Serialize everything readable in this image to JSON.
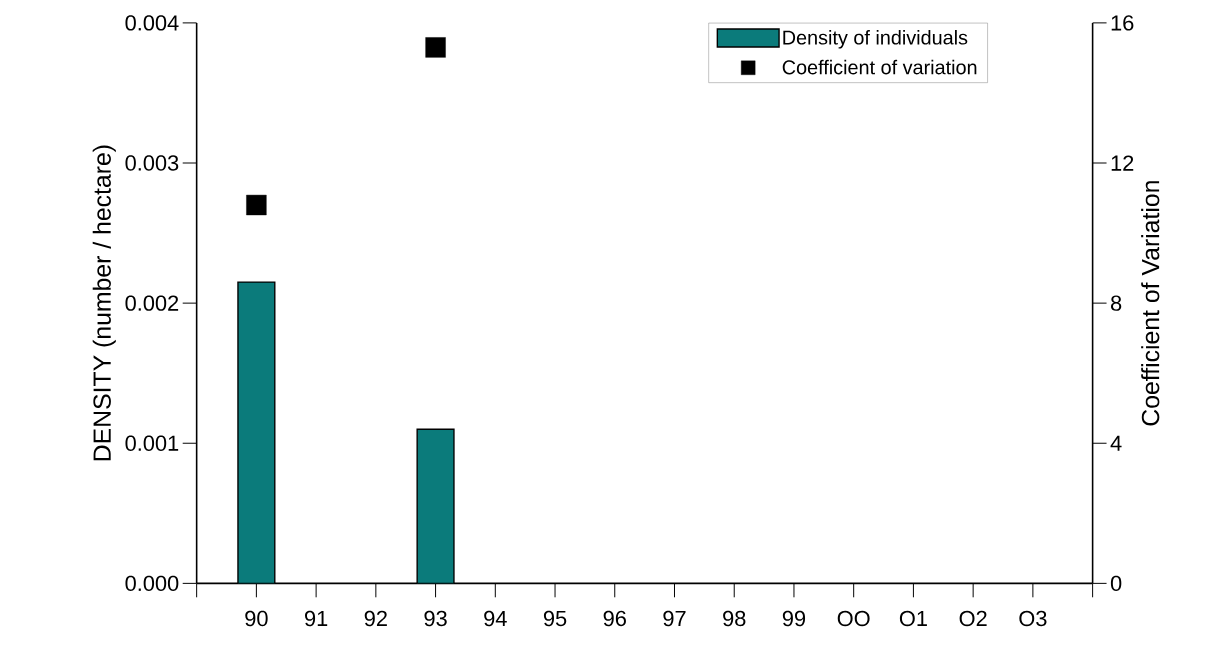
{
  "chart_data": {
    "type": "bar",
    "categories": [
      "90",
      "91",
      "92",
      "93",
      "94",
      "95",
      "96",
      "97",
      "98",
      "99",
      "OO",
      "O1",
      "O2",
      "O3"
    ],
    "ylabel": "DENSITY (number / hectare)",
    "y2label": "Coefficient of Variation",
    "series": [
      {
        "name": "Density of individuals",
        "color": "#0b7b7b",
        "values": [
          0.00215,
          null,
          null,
          0.0011,
          null,
          null,
          null,
          null,
          null,
          null,
          null,
          null,
          null,
          null
        ]
      },
      {
        "name": "Coefficient of variation",
        "type": "scatter",
        "axis": "y2",
        "color": "#000000",
        "values": [
          10.8,
          null,
          null,
          15.3,
          null,
          null,
          null,
          null,
          null,
          null,
          null,
          null,
          null,
          null
        ]
      }
    ],
    "marker": "square",
    "ylim": [
      0,
      0.004
    ],
    "yticks": [
      {
        "value": 0,
        "label": "0.000"
      },
      {
        "value": 0.001,
        "label": "0.001"
      },
      {
        "value": 0.002,
        "label": "0.002"
      },
      {
        "value": 0.003,
        "label": "0.003"
      },
      {
        "value": 0.004,
        "label": "0.004"
      }
    ],
    "y2lim": [
      0,
      16
    ],
    "y2ticks": [
      0,
      4,
      8,
      12,
      16
    ],
    "legend": "top right",
    "grid": false
  }
}
